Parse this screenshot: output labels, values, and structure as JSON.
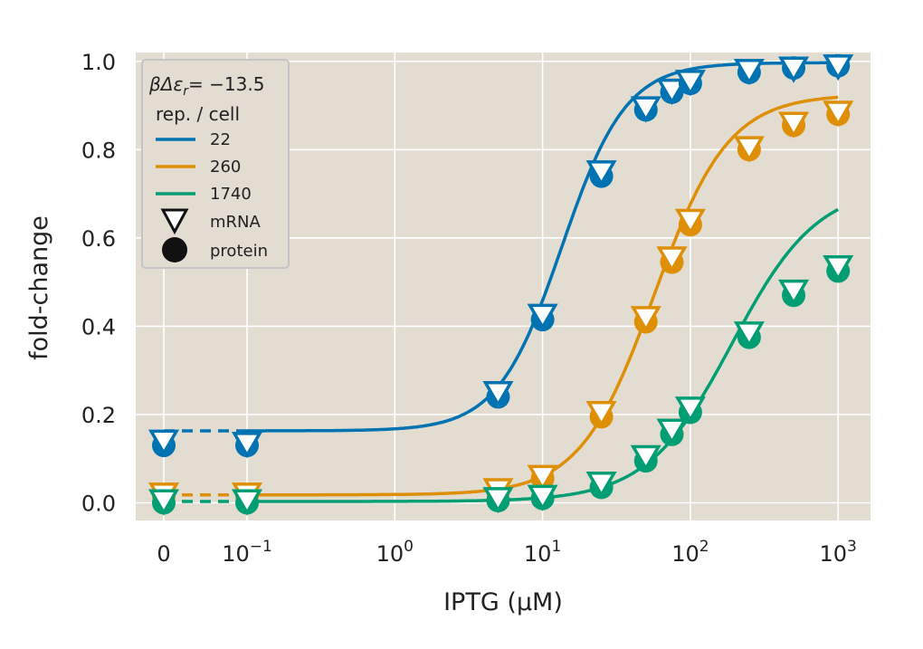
{
  "chart_data": {
    "type": "line",
    "xlabel": "IPTG (μM)",
    "ylabel": "fold-change",
    "x_scale": "symlog-with-zero",
    "xticks": [
      {
        "value": 0,
        "base": "0",
        "exp": ""
      },
      {
        "value": 0.1,
        "base": "10",
        "exp": "−1"
      },
      {
        "value": 1,
        "base": "10",
        "exp": "0"
      },
      {
        "value": 10,
        "base": "10",
        "exp": "1"
      },
      {
        "value": 100,
        "base": "10",
        "exp": "2"
      },
      {
        "value": 1000,
        "base": "10",
        "exp": "3"
      }
    ],
    "yticks": [
      "0.0",
      "0.2",
      "0.4",
      "0.6",
      "0.8",
      "1.0"
    ],
    "ylim": [
      -0.04,
      1.02
    ],
    "grid": true,
    "legend": {
      "placement": "top-left",
      "title_prefix": "βΔε",
      "title_sub": "r",
      "title_suffix": "= −13.5",
      "subtitle": "rep. / cell",
      "marker_mrna": "mRNA",
      "marker_protein": "protein"
    },
    "concentrations": [
      0,
      0.1,
      5,
      10,
      25,
      50,
      75,
      100,
      250,
      500,
      1000
    ],
    "series": [
      {
        "name": "22",
        "color": "#0173b2",
        "theory": {
          "leakiness": 0.163,
          "max": 0.997,
          "ec50": 13.5,
          "hill": 2.0
        },
        "mrna": [
          0.14,
          0.135,
          0.25,
          0.425,
          0.75,
          0.895,
          0.935,
          0.955,
          0.98,
          0.985,
          0.99
        ],
        "protein": [
          0.13,
          0.13,
          0.24,
          0.415,
          0.74,
          0.89,
          0.93,
          0.95,
          0.975,
          0.985,
          0.99
        ]
      },
      {
        "name": "260",
        "color": "#de8f05",
        "theory": {
          "leakiness": 0.018,
          "max": 0.925,
          "ec50": 57,
          "hill": 1.73
        },
        "mrna": [
          0.02,
          0.02,
          0.03,
          0.06,
          0.205,
          0.42,
          0.555,
          0.64,
          0.805,
          0.86,
          0.885
        ],
        "protein": [
          0.015,
          0.015,
          0.025,
          0.055,
          0.195,
          0.41,
          0.545,
          0.63,
          0.8,
          0.855,
          0.88
        ]
      },
      {
        "name": "1740",
        "color": "#029e73",
        "theory": {
          "leakiness": 0.003,
          "max": 0.72,
          "ec50": 192,
          "hill": 1.5
        },
        "mrna": [
          0.005,
          0.005,
          0.01,
          0.015,
          0.045,
          0.105,
          0.165,
          0.215,
          0.385,
          0.48,
          0.535
        ],
        "protein": [
          0.0,
          0.0,
          0.005,
          0.01,
          0.035,
          0.095,
          0.155,
          0.205,
          0.375,
          0.47,
          0.525
        ]
      }
    ]
  }
}
